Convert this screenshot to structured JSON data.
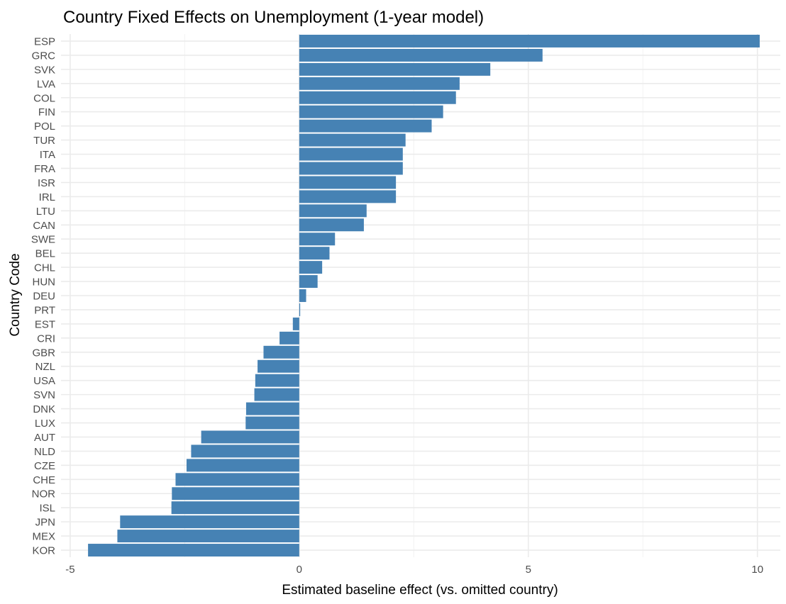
{
  "chart_data": {
    "type": "bar",
    "orientation": "horizontal",
    "title": "Country Fixed Effects on Unemployment (1-year model)",
    "xlabel": "Estimated baseline effect (vs. omitted country)",
    "ylabel": "Country Code",
    "xlim": [
      -5.2,
      10.5
    ],
    "x_ticks": [
      -5,
      0,
      5,
      10
    ],
    "x_tick_labels": [
      "-5",
      "0",
      "5",
      "10"
    ],
    "grid": true,
    "bar_color": "#4682b4",
    "categories": [
      "ESP",
      "GRC",
      "SVK",
      "LVA",
      "COL",
      "FIN",
      "POL",
      "TUR",
      "ITA",
      "FRA",
      "ISR",
      "IRL",
      "LTU",
      "CAN",
      "SWE",
      "BEL",
      "CHL",
      "HUN",
      "DEU",
      "PRT",
      "EST",
      "CRI",
      "GBR",
      "NZL",
      "USA",
      "SVN",
      "DNK",
      "LUX",
      "AUT",
      "NLD",
      "CZE",
      "CHE",
      "NOR",
      "ISL",
      "JPN",
      "MEX",
      "KOR"
    ],
    "values": [
      10.05,
      5.31,
      4.17,
      3.5,
      3.42,
      3.14,
      2.89,
      2.32,
      2.26,
      2.26,
      2.11,
      2.11,
      1.47,
      1.41,
      0.78,
      0.66,
      0.5,
      0.4,
      0.15,
      0.02,
      -0.14,
      -0.43,
      -0.78,
      -0.91,
      -0.96,
      -0.98,
      -1.16,
      -1.17,
      -2.14,
      -2.36,
      -2.46,
      -2.7,
      -2.78,
      -2.79,
      -3.91,
      -3.97,
      -4.61
    ]
  }
}
